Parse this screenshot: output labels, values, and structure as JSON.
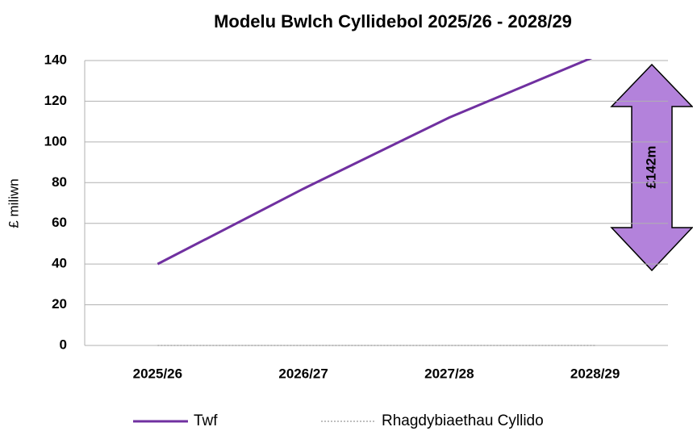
{
  "chart_data": {
    "type": "line",
    "title": "Modelu Bwlch Cyllidebol 2025/26 - 2028/29",
    "y_label": "£ miliwn",
    "categories": [
      "2025/26",
      "2026/27",
      "2027/28",
      "2028/29"
    ],
    "series": [
      {
        "name": "Twf",
        "color": "#7030a0",
        "style": "solid",
        "values": [
          40,
          77,
          112,
          142
        ]
      },
      {
        "name": "Rhagdybiaethau Cyllido",
        "color": "#bfbfbf",
        "style": "dotted",
        "values": [
          0,
          0,
          0,
          0
        ]
      }
    ],
    "ylim": [
      0,
      140
    ],
    "yticks": [
      0,
      20,
      40,
      60,
      80,
      100,
      120,
      140
    ],
    "grid": true,
    "legend": "bottom",
    "annotation": {
      "text": "£142m",
      "color": "#b382db"
    }
  }
}
